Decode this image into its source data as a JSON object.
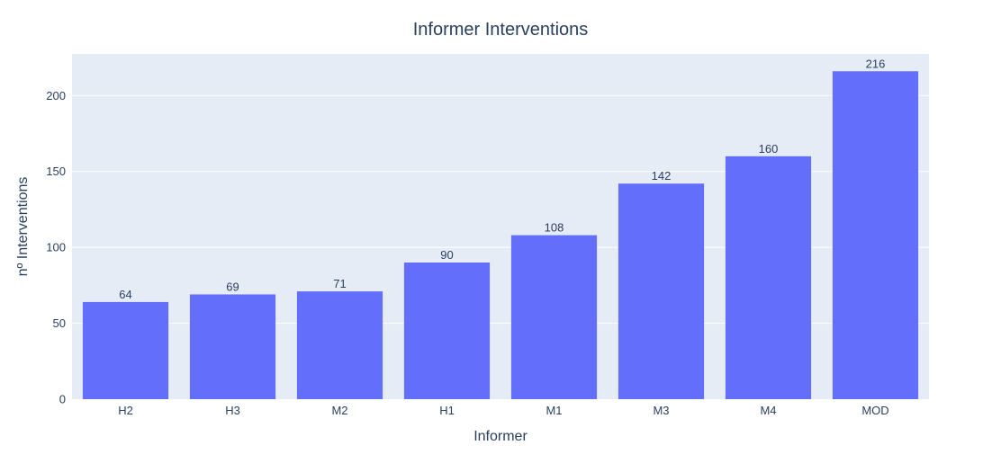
{
  "chart_data": {
    "type": "bar",
    "title": "Informer Interventions",
    "xlabel": "Informer",
    "ylabel": "nº Interventions",
    "categories": [
      "H2",
      "H3",
      "M2",
      "H1",
      "M1",
      "M3",
      "M4",
      "MOD"
    ],
    "values": [
      64,
      69,
      71,
      90,
      108,
      142,
      160,
      216
    ],
    "data_labels": [
      "64",
      "69",
      "71",
      "90",
      "108",
      "142",
      "160",
      "216"
    ],
    "ylim": [
      0,
      227.4
    ],
    "yticks": [
      0,
      50,
      100,
      150,
      200
    ],
    "ytick_labels": [
      "0",
      "50",
      "100",
      "150",
      "200"
    ],
    "grid": true,
    "legend": "none",
    "colors": {
      "bar": "#636efa",
      "plot_background": "#e5ecf6",
      "grid": "#ffffff",
      "text": "#2a3f5f"
    }
  }
}
